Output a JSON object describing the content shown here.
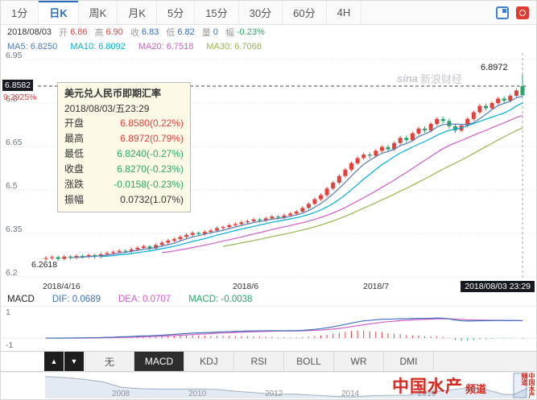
{
  "colors": {
    "up": "#e2413c",
    "down": "#2ba469",
    "ma5": "#4f7cb4",
    "ma10": "#00b0d8",
    "ma20": "#cf5bc8",
    "ma30": "#93b74a",
    "dif": "#3d71b8",
    "dea": "#cf5bc8",
    "hist_label": "#2ba469",
    "accent": "#2a6cc0"
  },
  "tabbar": {
    "tabs": [
      {
        "label": "1分",
        "active": false
      },
      {
        "label": "日K",
        "active": true
      },
      {
        "label": "周K",
        "active": false
      },
      {
        "label": "月K",
        "active": false
      },
      {
        "label": "5分",
        "active": false
      },
      {
        "label": "15分",
        "active": false
      },
      {
        "label": "30分",
        "active": false
      },
      {
        "label": "60分",
        "active": false
      },
      {
        "label": "4H",
        "active": false
      }
    ]
  },
  "info_bar": {
    "date": "2018/08/03",
    "fields": [
      {
        "label": "开",
        "value": "6.86",
        "tone": "up"
      },
      {
        "label": "高",
        "value": "6.90",
        "tone": "up"
      },
      {
        "label": "收",
        "value": "6.83",
        "tone": "blue"
      },
      {
        "label": "低",
        "value": "6.82",
        "tone": "blue"
      },
      {
        "label": "量",
        "value": "0",
        "tone": "blue"
      },
      {
        "label": "幅",
        "value": "-0.23%",
        "tone": "down"
      }
    ]
  },
  "ma_bar": {
    "items": [
      {
        "text": "MA5: 6.8250"
      },
      {
        "text": "MA10: 6.8092"
      },
      {
        "text": "MA20: 6.7518"
      },
      {
        "text": "MA30: 6.7068"
      }
    ]
  },
  "chart": {
    "y_axis": [
      "6.95",
      "6.8",
      "6.65",
      "6.5",
      "6.35",
      "6.2"
    ],
    "price_tag": "6.8582",
    "price_pct": "9.2925%",
    "high_label": "6.8972",
    "low_label": "6.2618",
    "x_labels": [
      "2018/4/16",
      "2018/6",
      "2018/7"
    ],
    "crosshair_date": "2018/08/03 23:29"
  },
  "tooltip": {
    "title": "美元兑人民币即期汇率",
    "date": "2018/08/03/五23:29",
    "rows": [
      {
        "label": "开盘",
        "value": "6.8580(0.22%)",
        "tone": "up"
      },
      {
        "label": "最高",
        "value": "6.8972(0.79%)",
        "tone": "up"
      },
      {
        "label": "最低",
        "value": "6.8240(-0.27%)",
        "tone": "down"
      },
      {
        "label": "收盘",
        "value": "6.8270(-0.23%)",
        "tone": "down"
      },
      {
        "label": "涨跌",
        "value": "-0.0158(-0.23%)",
        "tone": "down"
      },
      {
        "label": "振幅",
        "value": "0.0732(1.07%)",
        "tone": "neutral"
      }
    ]
  },
  "macd": {
    "items": [
      {
        "text": "MACD"
      },
      {
        "text": "DIF: 0.0689"
      },
      {
        "text": "DEA: 0.0707"
      },
      {
        "text": "MACD: -0.0038"
      }
    ],
    "y_top": "1",
    "y_bottom": "-1"
  },
  "indicator_bar": {
    "up": "▲",
    "down": "▼",
    "tabs": [
      {
        "label": "无",
        "active": false
      },
      {
        "label": "MACD",
        "active": true
      },
      {
        "label": "KDJ",
        "active": false
      },
      {
        "label": "RSI",
        "active": false
      },
      {
        "label": "BOLL",
        "active": false
      },
      {
        "label": "WR",
        "active": false
      },
      {
        "label": "DMI",
        "active": false
      }
    ]
  },
  "watermark": {
    "sina_prefix": "sina",
    "sina": "新浪财经",
    "cn1": "中国水产",
    "cn2": "频道",
    "vertical": "中国水产频道"
  },
  "chart_data": [
    {
      "type": "candlestick",
      "title": "美元兑人民币即期汇率",
      "period": "日K",
      "start": "2018/4/16",
      "end": "2018/08/03",
      "ylim": [
        6.2,
        6.95
      ],
      "y_gridlines": [
        6.95,
        6.8,
        6.65,
        6.5,
        6.35,
        6.2
      ],
      "last_price_line": 6.8582,
      "high_marker": 6.8972,
      "low_marker": 6.2618,
      "ma_periods": [
        5,
        10,
        20,
        30
      ],
      "candles": [
        [
          6.262,
          6.272,
          6.255,
          6.265
        ],
        [
          6.265,
          6.274,
          6.259,
          6.268
        ],
        [
          6.268,
          6.273,
          6.255,
          6.262
        ],
        [
          6.262,
          6.276,
          6.257,
          6.27
        ],
        [
          6.27,
          6.275,
          6.259,
          6.266
        ],
        [
          6.266,
          6.278,
          6.261,
          6.272
        ],
        [
          6.272,
          6.277,
          6.263,
          6.27
        ],
        [
          6.27,
          6.281,
          6.264,
          6.275
        ],
        [
          6.275,
          6.28,
          6.262,
          6.27
        ],
        [
          6.27,
          6.284,
          6.264,
          6.278
        ],
        [
          6.278,
          6.288,
          6.272,
          6.282
        ],
        [
          6.282,
          6.291,
          6.276,
          6.285
        ],
        [
          6.285,
          6.296,
          6.28,
          6.29
        ],
        [
          6.29,
          6.295,
          6.281,
          6.288
        ],
        [
          6.288,
          6.301,
          6.282,
          6.295
        ],
        [
          6.295,
          6.306,
          6.289,
          6.3
        ],
        [
          6.3,
          6.311,
          6.294,
          6.305
        ],
        [
          6.305,
          6.31,
          6.291,
          6.298
        ],
        [
          6.298,
          6.316,
          6.292,
          6.31
        ],
        [
          6.31,
          6.324,
          6.304,
          6.318
        ],
        [
          6.318,
          6.331,
          6.312,
          6.325
        ],
        [
          6.325,
          6.336,
          6.319,
          6.33
        ],
        [
          6.33,
          6.344,
          6.324,
          6.338
        ],
        [
          6.338,
          6.351,
          6.332,
          6.345
        ],
        [
          6.345,
          6.358,
          6.339,
          6.352
        ],
        [
          6.352,
          6.357,
          6.341,
          6.348
        ],
        [
          6.348,
          6.361,
          6.342,
          6.355
        ],
        [
          6.355,
          6.366,
          6.349,
          6.36
        ],
        [
          6.36,
          6.374,
          6.354,
          6.368
        ],
        [
          6.368,
          6.378,
          6.362,
          6.372
        ],
        [
          6.372,
          6.384,
          6.366,
          6.378
        ],
        [
          6.378,
          6.388,
          6.372,
          6.382
        ],
        [
          6.382,
          6.394,
          6.376,
          6.388
        ],
        [
          6.388,
          6.398,
          6.382,
          6.392
        ],
        [
          6.392,
          6.404,
          6.386,
          6.398
        ],
        [
          6.398,
          6.403,
          6.387,
          6.395
        ],
        [
          6.395,
          6.408,
          6.389,
          6.402
        ],
        [
          6.402,
          6.414,
          6.396,
          6.408
        ],
        [
          6.408,
          6.413,
          6.397,
          6.405
        ],
        [
          6.405,
          6.418,
          6.399,
          6.412
        ],
        [
          6.412,
          6.424,
          6.406,
          6.418
        ],
        [
          6.418,
          6.431,
          6.412,
          6.425
        ],
        [
          6.425,
          6.444,
          6.419,
          6.438
        ],
        [
          6.438,
          6.458,
          6.432,
          6.452
        ],
        [
          6.452,
          6.474,
          6.446,
          6.468
        ],
        [
          6.468,
          6.488,
          6.462,
          6.482
        ],
        [
          6.482,
          6.511,
          6.476,
          6.505
        ],
        [
          6.505,
          6.531,
          6.499,
          6.525
        ],
        [
          6.525,
          6.554,
          6.519,
          6.548
        ],
        [
          6.548,
          6.576,
          6.542,
          6.57
        ],
        [
          6.57,
          6.598,
          6.564,
          6.592
        ],
        [
          6.592,
          6.616,
          6.586,
          6.61
        ],
        [
          6.61,
          6.628,
          6.604,
          6.622
        ],
        [
          6.622,
          6.63,
          6.608,
          6.618
        ],
        [
          6.618,
          6.641,
          6.612,
          6.635
        ],
        [
          6.635,
          6.654,
          6.629,
          6.648
        ],
        [
          6.648,
          6.655,
          6.632,
          6.64
        ],
        [
          6.64,
          6.668,
          6.634,
          6.662
        ],
        [
          6.662,
          6.686,
          6.656,
          6.68
        ],
        [
          6.68,
          6.688,
          6.664,
          6.672
        ],
        [
          6.672,
          6.701,
          6.666,
          6.695
        ],
        [
          6.695,
          6.718,
          6.689,
          6.712
        ],
        [
          6.712,
          6.72,
          6.697,
          6.705
        ],
        [
          6.705,
          6.734,
          6.699,
          6.728
        ],
        [
          6.728,
          6.751,
          6.722,
          6.745
        ],
        [
          6.745,
          6.753,
          6.73,
          6.738
        ],
        [
          6.738,
          6.746,
          6.712,
          6.72
        ],
        [
          6.72,
          6.728,
          6.697,
          6.705
        ],
        [
          6.705,
          6.728,
          6.699,
          6.722
        ],
        [
          6.722,
          6.751,
          6.716,
          6.745
        ],
        [
          6.745,
          6.774,
          6.739,
          6.768
        ],
        [
          6.768,
          6.796,
          6.762,
          6.79
        ],
        [
          6.79,
          6.798,
          6.774,
          6.782
        ],
        [
          6.782,
          6.806,
          6.776,
          6.8
        ],
        [
          6.8,
          6.821,
          6.794,
          6.815
        ],
        [
          6.815,
          6.823,
          6.8,
          6.808
        ],
        [
          6.808,
          6.831,
          6.802,
          6.825
        ],
        [
          6.825,
          6.85,
          6.817,
          6.843
        ],
        [
          6.858,
          6.8972,
          6.824,
          6.827
        ]
      ]
    },
    {
      "type": "macd",
      "params": [
        12,
        26,
        9
      ],
      "dif": 0.0689,
      "dea": 0.0707,
      "macd": -0.0038,
      "y_ticks": [
        1,
        -1
      ]
    },
    {
      "type": "area",
      "name": "navigator",
      "x_labels": [
        "2008",
        "2010",
        "2012",
        "2014",
        "2016"
      ],
      "years": [
        2006,
        2006.5,
        2007,
        2007.5,
        2008,
        2008.5,
        2009,
        2009.5,
        2010,
        2010.5,
        2011,
        2011.5,
        2012,
        2012.5,
        2013,
        2013.5,
        2014,
        2014.5,
        2015,
        2015.5,
        2016,
        2016.5,
        2017,
        2017.5,
        2018,
        2018.25,
        2018.6
      ],
      "values": [
        8.07,
        7.97,
        7.8,
        7.55,
        7.0,
        6.86,
        6.83,
        6.83,
        6.83,
        6.79,
        6.59,
        6.46,
        6.31,
        6.33,
        6.22,
        6.12,
        6.05,
        6.16,
        6.21,
        6.21,
        6.51,
        6.67,
        6.94,
        6.8,
        6.29,
        6.28,
        6.88
      ]
    }
  ]
}
